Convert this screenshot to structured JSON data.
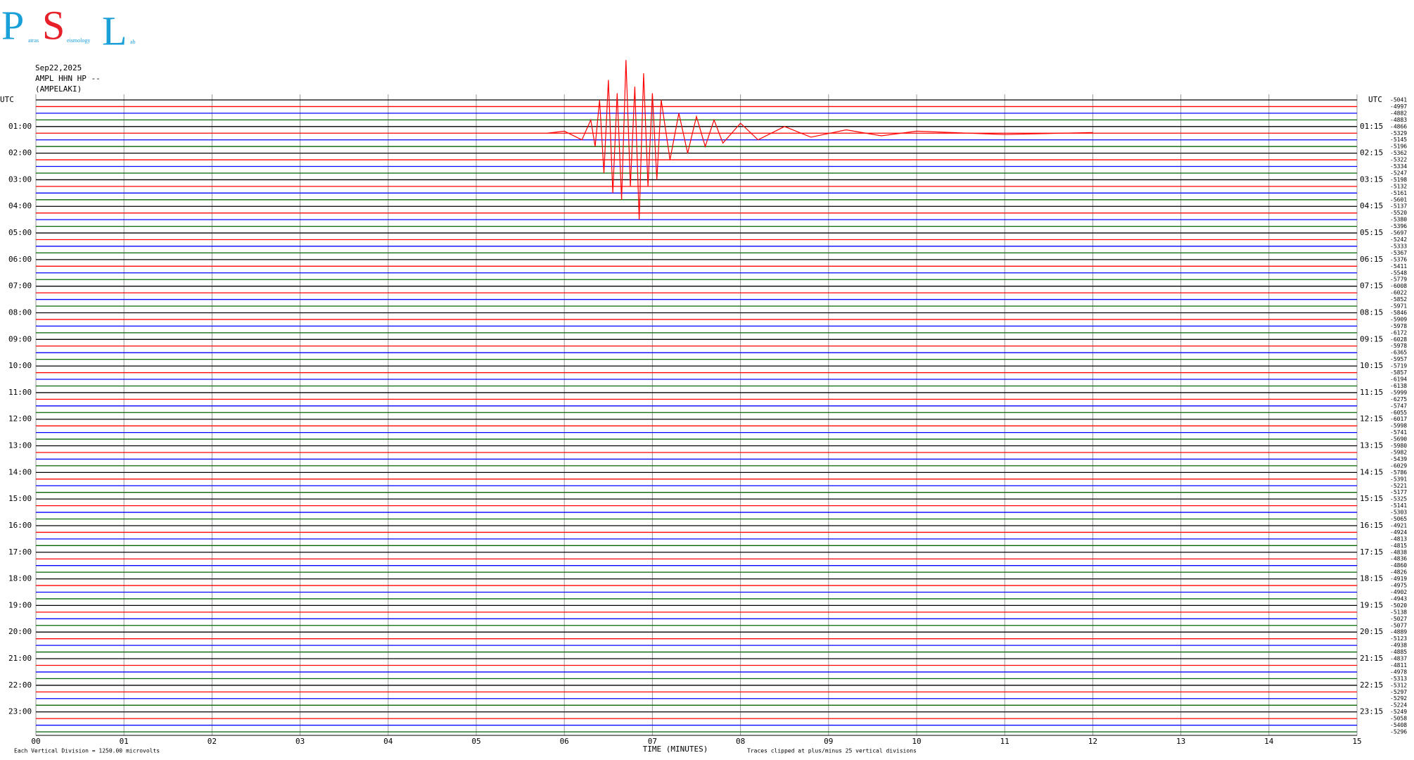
{
  "header": {
    "logo_letters": [
      "P",
      "S",
      "L"
    ],
    "logo_words": [
      "atras",
      "eismology",
      "ab"
    ],
    "info": [
      "Sep22,2025",
      "AMPL HHN HP --",
      "(AMPELAKI)"
    ]
  },
  "chart_data": {
    "type": "helicorder",
    "xlabel": "TIME (MINUTES)",
    "scale_note": "Each Vertical Division = 1250.00 microvolts",
    "clip_note": "Traces clipped at plus/minus 25 vertical divisions",
    "utc_label": "UTC",
    "xlim": [
      0,
      15
    ],
    "xticks": [
      {
        "value": 0,
        "label": "00"
      },
      {
        "value": 1,
        "label": "01"
      },
      {
        "value": 2,
        "label": "02"
      },
      {
        "value": 3,
        "label": "03"
      },
      {
        "value": 4,
        "label": "04"
      },
      {
        "value": 5,
        "label": "05"
      },
      {
        "value": 6,
        "label": "06"
      },
      {
        "value": 7,
        "label": "07"
      },
      {
        "value": 8,
        "label": "08"
      },
      {
        "value": 9,
        "label": "09"
      },
      {
        "value": 10,
        "label": "10"
      },
      11,
      12,
      13,
      14,
      15
    ],
    "grid": true,
    "trace_colors": [
      "#000000",
      "#ff0000",
      "#0000ff",
      "#006400"
    ],
    "left_hour_labels": [
      "01:00",
      "02:00",
      "03:00",
      "04:00",
      "05:00",
      "06:00",
      "07:00",
      "08:00",
      "09:00",
      "10:00",
      "11:00",
      "12:00",
      "13:00",
      "14:00",
      "15:00",
      "16:00",
      "17:00",
      "18:00",
      "19:00",
      "20:00",
      "21:00",
      "22:00",
      "23:00"
    ],
    "right_hour_labels": [
      "01:15",
      "02:15",
      "03:15",
      "04:15",
      "05:15",
      "06:15",
      "07:15",
      "08:15",
      "09:15",
      "10:15",
      "11:15",
      "12:15",
      "13:15",
      "14:15",
      "15:15",
      "16:15",
      "17:15",
      "18:15",
      "19:15",
      "20:15",
      "21:15",
      "22:15",
      "23:15"
    ],
    "trace_offsets": [
      -5041,
      -4997,
      -4882,
      -4883,
      -4866,
      -5329,
      -5145,
      -5196,
      -5362,
      -5322,
      -5334,
      -5247,
      -5198,
      -5132,
      -5161,
      -5601,
      -5137,
      -5520,
      -5380,
      -5396,
      -5697,
      -5242,
      -5333,
      -5367,
      -5376,
      -5411,
      -5548,
      -5779,
      -6008,
      -6022,
      -5852,
      -5971,
      -5846,
      -5909,
      -5978,
      -6172,
      -6028,
      -5978,
      -6365,
      -5957,
      -5719,
      -5857,
      -6194,
      -6138,
      -5999,
      -6275,
      -5747,
      -6055,
      -6017,
      -5998,
      -5741,
      -5690,
      -5980,
      -5982,
      -5439,
      -6029,
      -5786,
      -5391,
      -5221,
      -5177,
      -5325,
      -5141,
      -5303,
      -5065,
      -4921,
      -4924,
      -4813,
      -4815,
      -4838,
      -4836,
      -4860,
      -4826,
      -4919,
      -4975,
      -4902,
      -4943,
      -5020,
      -5138,
      -5027,
      -5077,
      -4889,
      -5123,
      -4938,
      -4885,
      -4837,
      -4811,
      -4978,
      -5313,
      -5312,
      -5297,
      -5292,
      -5224,
      -5249,
      -5058,
      -5408,
      -5296
    ],
    "event": {
      "trace": 5,
      "color": "#ff0000",
      "x": [
        5.8,
        6.0,
        6.2,
        6.3,
        6.35,
        6.4,
        6.45,
        6.5,
        6.55,
        6.6,
        6.65,
        6.7,
        6.75,
        6.8,
        6.85,
        6.9,
        6.95,
        7.0,
        7.05,
        7.1,
        7.2,
        7.3,
        7.4,
        7.5,
        7.6,
        7.7,
        7.8,
        8.0,
        8.2,
        8.5,
        8.8,
        9.2,
        9.6,
        10,
        11,
        12
      ],
      "values": [
        0,
        0.3,
        -1,
        2,
        -2,
        5,
        -6,
        8,
        -9,
        6,
        -10,
        11,
        -8,
        7,
        -13,
        9,
        -8,
        6,
        -7,
        5,
        -4,
        3,
        -3,
        2.5,
        -2,
        2,
        -1.5,
        1.5,
        -1,
        1,
        -0.6,
        0.5,
        -0.4,
        0.3,
        -0.2,
        0.1
      ]
    }
  }
}
